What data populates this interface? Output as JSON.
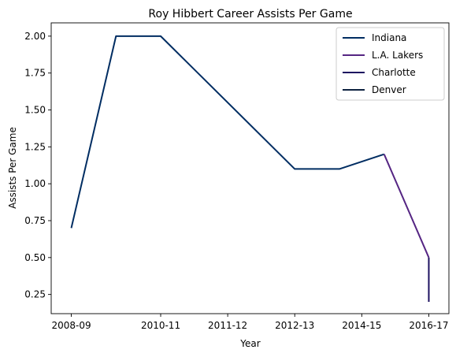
{
  "chart_data": {
    "type": "line",
    "title": "Roy Hibbert Career Assists Per Game",
    "xlabel": "Year",
    "ylabel": "Assists Per Game",
    "x_ticks": [
      "2008-09",
      "2010-11",
      "2011-12",
      "2012-13",
      "2014-15",
      "2016-17"
    ],
    "y_ticks": [
      "0.25",
      "0.50",
      "0.75",
      "1.00",
      "1.25",
      "1.50",
      "1.75",
      "2.00"
    ],
    "ylim": [
      0.12,
      2.09
    ],
    "legend_position": "top-right",
    "grid": false,
    "series": [
      {
        "name": "Indiana",
        "color": "#002d62",
        "points": [
          {
            "x": "2008-09",
            "y": 0.7
          },
          {
            "x": "2009-10",
            "y": 2.0
          },
          {
            "x": "2010-11",
            "y": 2.0
          },
          {
            "x": "2013-14",
            "y": 1.1
          },
          {
            "x": "2014-15",
            "y": 1.1
          },
          {
            "x": "2015-16",
            "y": 1.2
          }
        ]
      },
      {
        "name": "L.A. Lakers",
        "color": "#552583",
        "points": [
          {
            "x": "2015-16",
            "y": 1.2
          },
          {
            "x": "2016-17",
            "y": 0.5
          }
        ]
      },
      {
        "name": "Charlotte",
        "color": "#1d1160",
        "points": [
          {
            "x": "2016-17",
            "y": 0.5
          },
          {
            "x": "2016-17",
            "y": 0.2
          }
        ]
      },
      {
        "name": "Denver",
        "color": "#0e2240",
        "points": []
      }
    ]
  }
}
